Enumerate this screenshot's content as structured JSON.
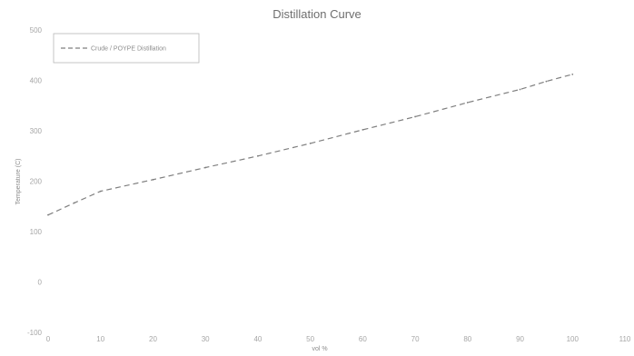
{
  "chart_data": {
    "type": "line",
    "title": "Distillation Curve",
    "xlabel": "vol %",
    "ylabel": "Temperature (C)",
    "x_ticks": [
      "0",
      "10",
      "20",
      "30",
      "40",
      "50",
      "60",
      "70",
      "80",
      "90",
      "100",
      "110"
    ],
    "y_ticks": [
      "-100",
      "0",
      "100",
      "200",
      "300",
      "400",
      "500"
    ],
    "xlim": [
      0,
      110
    ],
    "ylim": [
      -100,
      500
    ],
    "grid": false,
    "legend": {
      "placement": "top-left"
    },
    "series": [
      {
        "name": "Crude / POYPE Distillation",
        "x": [
          0,
          5,
          10,
          20,
          30,
          40,
          50,
          60,
          70,
          80,
          90,
          95,
          100
        ],
        "y": [
          133,
          157,
          180,
          203,
          227,
          250,
          275,
          302,
          328,
          356,
          382,
          398,
          412
        ],
        "color": "#7f7f7f"
      }
    ]
  }
}
